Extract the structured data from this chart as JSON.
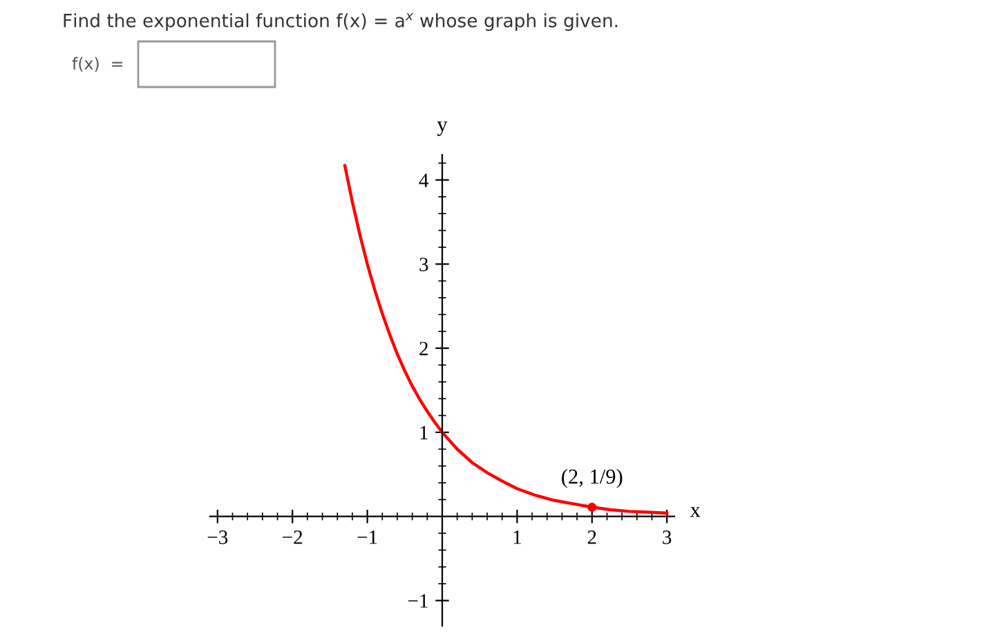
{
  "chart_data": {
    "type": "line",
    "title": "Find the exponential function f(x) = a$^{x}$ whose graph is given.",
    "subtitle": "f(x)  =",
    "xlabel": "x",
    "ylabel": "y",
    "series": [
      {
        "color": "#ff0000",
        "marker": "none",
        "x": [
          -1.3,
          -1.2,
          -1.1,
          -1,
          -0.9,
          -0.8,
          -0.7,
          -0.6,
          -0.5,
          -0.4,
          -0.3,
          -0.2,
          -0.1,
          0,
          0.2,
          0.4,
          0.6,
          0.8,
          1,
          1.25,
          1.5,
          1.75,
          2,
          2.25,
          2.5,
          2.75,
          3
        ],
        "values": [
          4.17,
          3.74,
          3.35,
          3.0,
          2.69,
          2.41,
          2.16,
          1.93,
          1.73,
          1.55,
          1.39,
          1.25,
          1.12,
          1.0,
          0.8,
          0.64,
          0.52,
          0.42,
          0.33,
          0.25,
          0.19,
          0.15,
          0.11,
          0.08,
          0.06,
          0.05,
          0.04
        ]
      },
      {
        "type": "scatter",
        "color": "#ff0000",
        "marker": "circle",
        "x": [
          2
        ],
        "values": [
          0.11
        ]
      }
    ],
    "annotations": [
      {
        "text": "(2, 1/9)",
        "x": 2,
        "y": 0.11
      }
    ],
    "xlim": [
      -3.1,
      3.1
    ],
    "ylim": [
      -1.3,
      4.3
    ],
    "xticks": [
      {
        "value": -3,
        "label": "−3"
      },
      {
        "value": -2.8,
        "label": null
      },
      {
        "value": -2.6,
        "label": null
      },
      {
        "value": -2.4,
        "label": null
      },
      {
        "value": -2.2,
        "label": null
      },
      {
        "value": -2,
        "label": "−2"
      },
      {
        "value": -1.8,
        "label": null
      },
      {
        "value": -1.6,
        "label": null
      },
      {
        "value": -1.4,
        "label": null
      },
      {
        "value": -1.2,
        "label": null
      },
      {
        "value": -1,
        "label": "−1"
      },
      {
        "value": -0.8,
        "label": null
      },
      {
        "value": -0.6,
        "label": null
      },
      {
        "value": -0.4,
        "label": null
      },
      {
        "value": -0.2,
        "label": null
      },
      {
        "value": 0.2,
        "label": null
      },
      {
        "value": 0.4,
        "label": null
      },
      {
        "value": 0.6,
        "label": null
      },
      {
        "value": 0.8,
        "label": null
      },
      1,
      {
        "value": 1.2,
        "label": null
      },
      {
        "value": 1.4,
        "label": null
      },
      {
        "value": 1.6,
        "label": null
      },
      {
        "value": 1.8,
        "label": null
      },
      2,
      {
        "value": 2.2,
        "label": null
      },
      {
        "value": 2.4,
        "label": null
      },
      {
        "value": 2.6,
        "label": null
      },
      {
        "value": 2.8,
        "label": null
      },
      3
    ],
    "yticks": [
      {
        "value": -1,
        "label": "−1"
      },
      {
        "value": -0.8,
        "label": null
      },
      {
        "value": -0.6,
        "label": null
      },
      {
        "value": -0.4,
        "label": null
      },
      {
        "value": -0.2,
        "label": null
      },
      {
        "value": 0.2,
        "label": null
      },
      {
        "value": 0.4,
        "label": null
      },
      {
        "value": 0.6,
        "label": null
      },
      {
        "value": 0.8,
        "label": null
      },
      1,
      {
        "value": 1.2,
        "label": null
      },
      {
        "value": 1.4,
        "label": null
      },
      {
        "value": 1.6,
        "label": null
      },
      {
        "value": 1.8,
        "label": null
      },
      2,
      {
        "value": 2.2,
        "label": null
      },
      {
        "value": 2.4,
        "label": null
      },
      {
        "value": 2.6,
        "label": null
      },
      {
        "value": 2.8,
        "label": null
      },
      3,
      {
        "value": 3.2,
        "label": null
      },
      {
        "value": 3.4,
        "label": null
      },
      {
        "value": 3.6,
        "label": null
      },
      {
        "value": 3.8,
        "label": null
      },
      4,
      {
        "value": 4.2,
        "label": null
      }
    ]
  }
}
